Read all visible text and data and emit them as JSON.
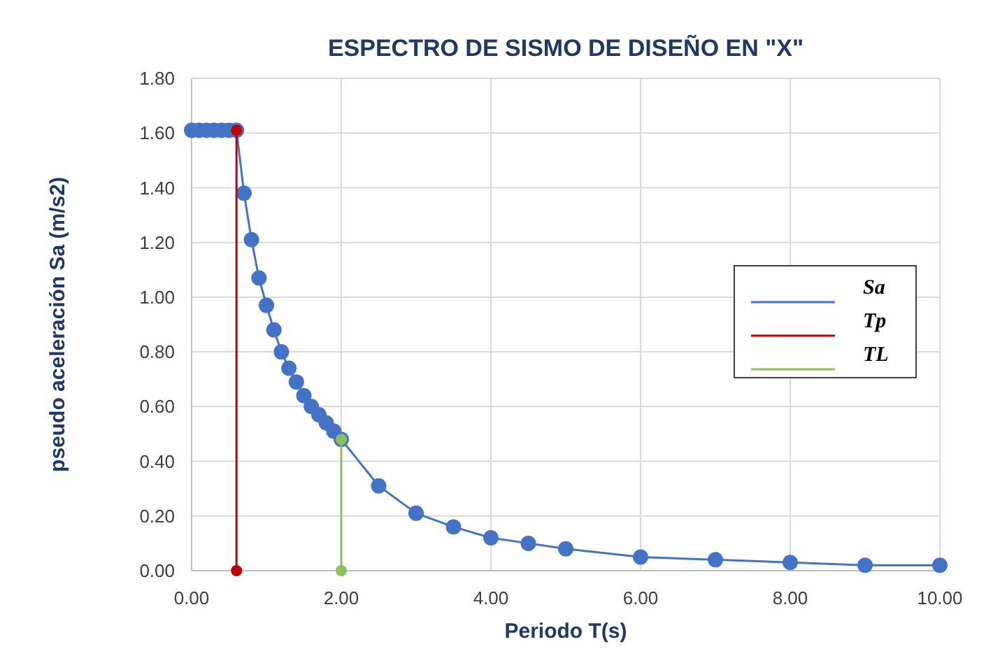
{
  "chart_data": {
    "type": "line",
    "title": "ESPECTRO DE SISMO DE DISEÑO EN \"X\"",
    "xlabel": "Periodo T(s)",
    "ylabel": "pseudo aceleración Sa (m/s2)",
    "xlim": [
      0,
      10
    ],
    "xticks": [
      {
        "value": 0,
        "label": "0.00"
      },
      {
        "value": 2,
        "label": "2.00"
      },
      {
        "value": 4,
        "label": "4.00"
      },
      {
        "value": 6,
        "label": "6.00"
      },
      {
        "value": 8,
        "label": "8.00"
      },
      {
        "value": 10,
        "label": "10.00"
      }
    ],
    "ylim": [
      0,
      1.8
    ],
    "yticks": [
      {
        "value": 0,
        "label": "0.00"
      },
      {
        "value": 0.2,
        "label": "0.20"
      },
      {
        "value": 0.4,
        "label": "0.40"
      },
      {
        "value": 0.6,
        "label": "0.60"
      },
      {
        "value": 0.8,
        "label": "0.80"
      },
      {
        "value": 1,
        "label": "1.00"
      },
      {
        "value": 1.2,
        "label": "1.20"
      },
      {
        "value": 1.4,
        "label": "1.40"
      },
      {
        "value": 1.6,
        "label": "1.60"
      },
      {
        "value": 1.8,
        "label": "1.80"
      }
    ],
    "grid": true,
    "legend": "right",
    "marker": "circle",
    "line_style": "solid",
    "series": [
      {
        "name": "Sa",
        "color": "#4472c4",
        "x": [
          0,
          0.1,
          0.2,
          0.3,
          0.4,
          0.5,
          0.6,
          0.7,
          0.8,
          0.9,
          1.0,
          1.1,
          1.2,
          1.3,
          1.4,
          1.5,
          1.6,
          1.7,
          1.8,
          1.9,
          2.0,
          2.5,
          3,
          3.5,
          4,
          4.5,
          5,
          6,
          7,
          8,
          9,
          10
        ],
        "values": [
          1.61,
          1.61,
          1.61,
          1.61,
          1.61,
          1.61,
          1.61,
          1.38,
          1.21,
          1.07,
          0.97,
          0.88,
          0.8,
          0.74,
          0.69,
          0.64,
          0.6,
          0.57,
          0.54,
          0.51,
          0.48,
          0.31,
          0.21,
          0.16,
          0.12,
          0.1,
          0.08,
          0.05,
          0.04,
          0.03,
          0.02,
          0.02
        ]
      },
      {
        "name": "Tp",
        "color": "#c00000",
        "x": [
          0.6,
          0.6
        ],
        "values": [
          1.61,
          0
        ]
      },
      {
        "name": "TL",
        "color": "#8fbf5a",
        "x": [
          2,
          2
        ],
        "values": [
          0.48,
          0
        ]
      }
    ]
  }
}
